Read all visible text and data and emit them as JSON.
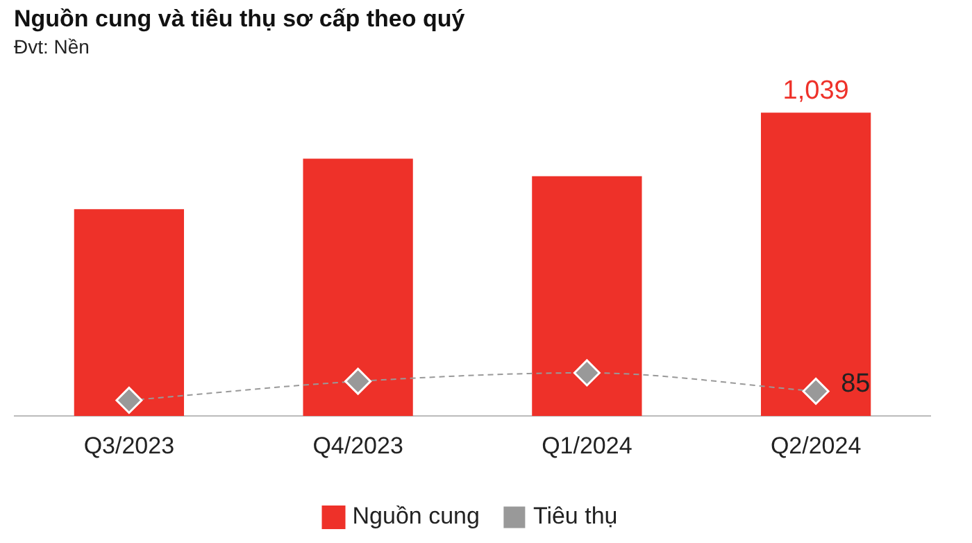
{
  "chart_data": {
    "type": "bar",
    "title": "Nguồn cung và tiêu thụ sơ cấp theo quý",
    "subtitle": "Đvt: Nền",
    "categories": [
      "Q3/2023",
      "Q4/2023",
      "Q1/2024",
      "Q2/2024"
    ],
    "legend": "bottom",
    "grid": false,
    "tick_labels": "x",
    "series": [
      {
        "name": "Nguồn cung",
        "color": "#ee3129",
        "values": [
          708,
          881,
          821,
          1039
        ],
        "value_labels": [
          null,
          null,
          null,
          "1,039"
        ]
      },
      {
        "name": "Tiêu thụ",
        "type": "line",
        "color": "#999999",
        "values": [
          54,
          119,
          148,
          85
        ],
        "value_labels": [
          null,
          null,
          null,
          "85"
        ],
        "marker": "diamond",
        "line_style": "dashed"
      }
    ]
  }
}
